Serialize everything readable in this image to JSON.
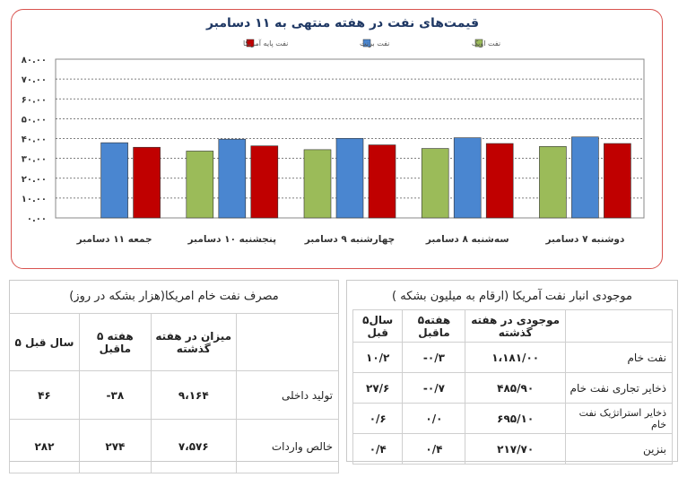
{
  "chart_data": {
    "type": "bar",
    "title": "قیمت‌های نفت در هفته منتهی به ۱۱ دسامبر",
    "categories": [
      "دوشنبه ۷ دسامبر",
      "سه‌شنبه ۸ دسامبر",
      "چهارشنبه ۹ دسامبر",
      "پنجشنبه ۱۰ دسامبر",
      "جمعه ۱۱ دسامبر"
    ],
    "ylim": [
      0,
      80
    ],
    "yticks": [
      "۰.۰۰",
      "۱۰.۰۰",
      "۲۰.۰۰",
      "۳۰.۰۰",
      "۴۰.۰۰",
      "۵۰.۰۰",
      "۶۰.۰۰",
      "۷۰.۰۰",
      "۸۰.۰۰"
    ],
    "grid": true,
    "legend_position": "top",
    "series": [
      {
        "name": "نفت پایه آمریکا",
        "color": "#c00000",
        "values": [
          37.5,
          37.5,
          36.8,
          36.3,
          35.6
        ]
      },
      {
        "name": "نفت برنت",
        "color": "#4a86d0",
        "values": [
          40.8,
          40.4,
          40.1,
          39.7,
          37.9
        ]
      },
      {
        "name": "نفت اوپک",
        "color": "#9bbb59",
        "values": [
          36.0,
          35.0,
          34.4,
          33.7,
          null
        ]
      }
    ]
  },
  "consumption_table": {
    "title": "مصرف نفت خام امریکا(هزار بشکه در روز)",
    "headers": [
      "۵ سال قبل",
      "۵ هفته ماقبل",
      "میزان در هفته گذشته",
      ""
    ],
    "rows": [
      {
        "label": "تولید داخلی",
        "last_week": "۹،۱۶۴",
        "five_weeks": "-۳۸",
        "five_years": "۴۶"
      },
      {
        "label": "خالص واردات",
        "last_week": "۷،۵۷۶",
        "five_weeks": "۲۷۴",
        "five_years": "۲۸۲"
      }
    ]
  },
  "inventory_table": {
    "title": "موجودی انبار نفت آمریکا   (ارقام به میلیون بشکه )",
    "headers": [
      "۵سال قبل",
      "۵هفته ماقبل",
      "موجودی در هفته گذشته",
      ""
    ],
    "rows": [
      {
        "label": "نفت خام",
        "last_week": "۱،۱۸۱/۰۰",
        "five_weeks": "-۰/۳",
        "five_years": "۱۰/۲"
      },
      {
        "label": "ذخایر تجاری نفت خام",
        "last_week": "۴۸۵/۹۰",
        "five_weeks": "-۰/۷",
        "five_years": "۲۷/۶"
      },
      {
        "label": "ذخایر استراتژیک نفت خام",
        "last_week": "۶۹۵/۱۰",
        "five_weeks": "۰/۰",
        "five_years": "۰/۶"
      },
      {
        "label": "بنزین",
        "last_week": "۲۱۷/۷۰",
        "five_weeks": "۰/۴",
        "five_years": "۰/۴"
      }
    ]
  }
}
